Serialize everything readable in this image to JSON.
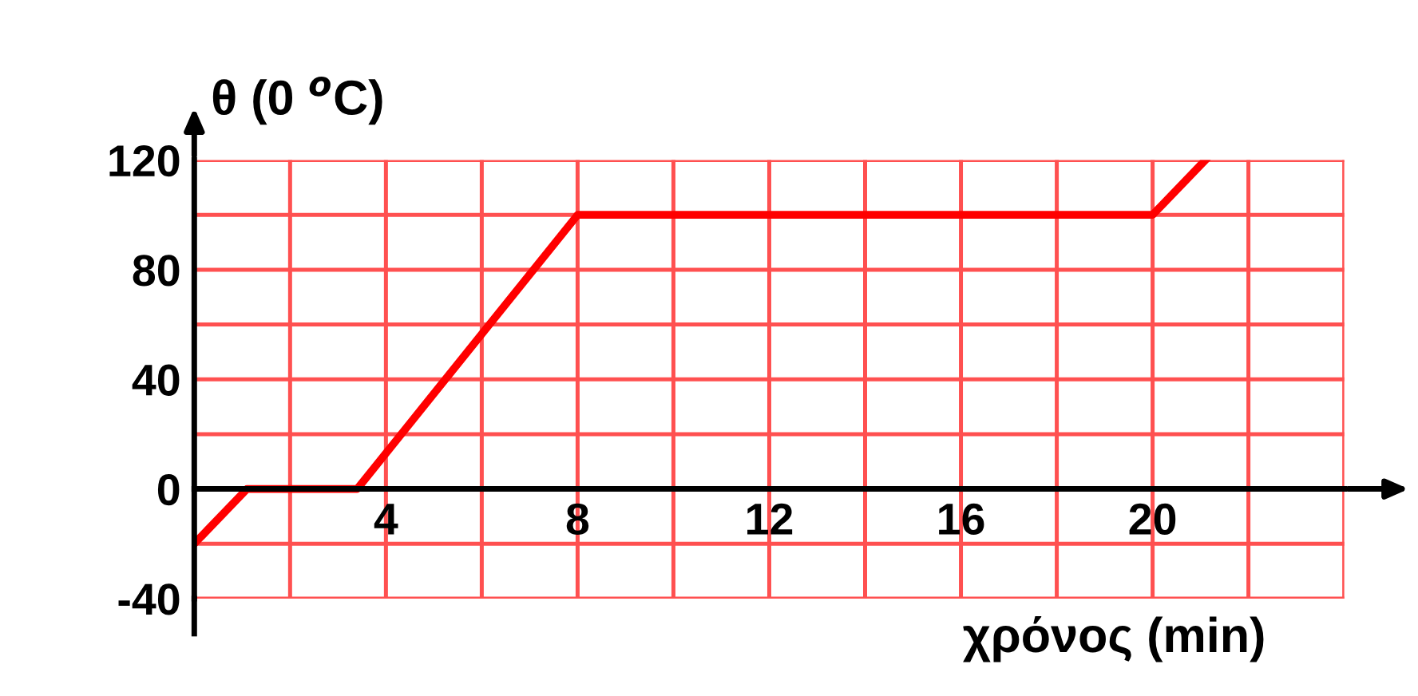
{
  "chart_data": {
    "type": "line",
    "ylabel": "θ (0 $^{o}$C)",
    "xlabel": "χρόνος (min)",
    "x": [
      0,
      1.1,
      3.4,
      8,
      20,
      21.1
    ],
    "series": [
      {
        "color": "#ff0000",
        "values": [
          -20,
          0,
          0,
          100,
          100,
          120
        ]
      }
    ],
    "xlim": [
      0,
      24
    ],
    "ylim": [
      -40,
      120
    ],
    "xticks": [
      {
        "value": 2,
        "label": null
      },
      4,
      {
        "value": 6,
        "label": null
      },
      8,
      {
        "value": 10,
        "label": null
      },
      12,
      {
        "value": 14,
        "label": null
      },
      16,
      {
        "value": 18,
        "label": null
      },
      20,
      {
        "value": 22,
        "label": null
      },
      {
        "value": 24,
        "label": null
      }
    ],
    "yticks": [
      -40,
      {
        "value": -20,
        "label": null
      },
      0,
      {
        "value": 20,
        "label": null
      },
      40,
      {
        "value": 60,
        "label": null
      },
      80,
      {
        "value": 100,
        "label": null
      },
      120
    ],
    "grid": true,
    "marker": "none",
    "line_style": "solid"
  }
}
